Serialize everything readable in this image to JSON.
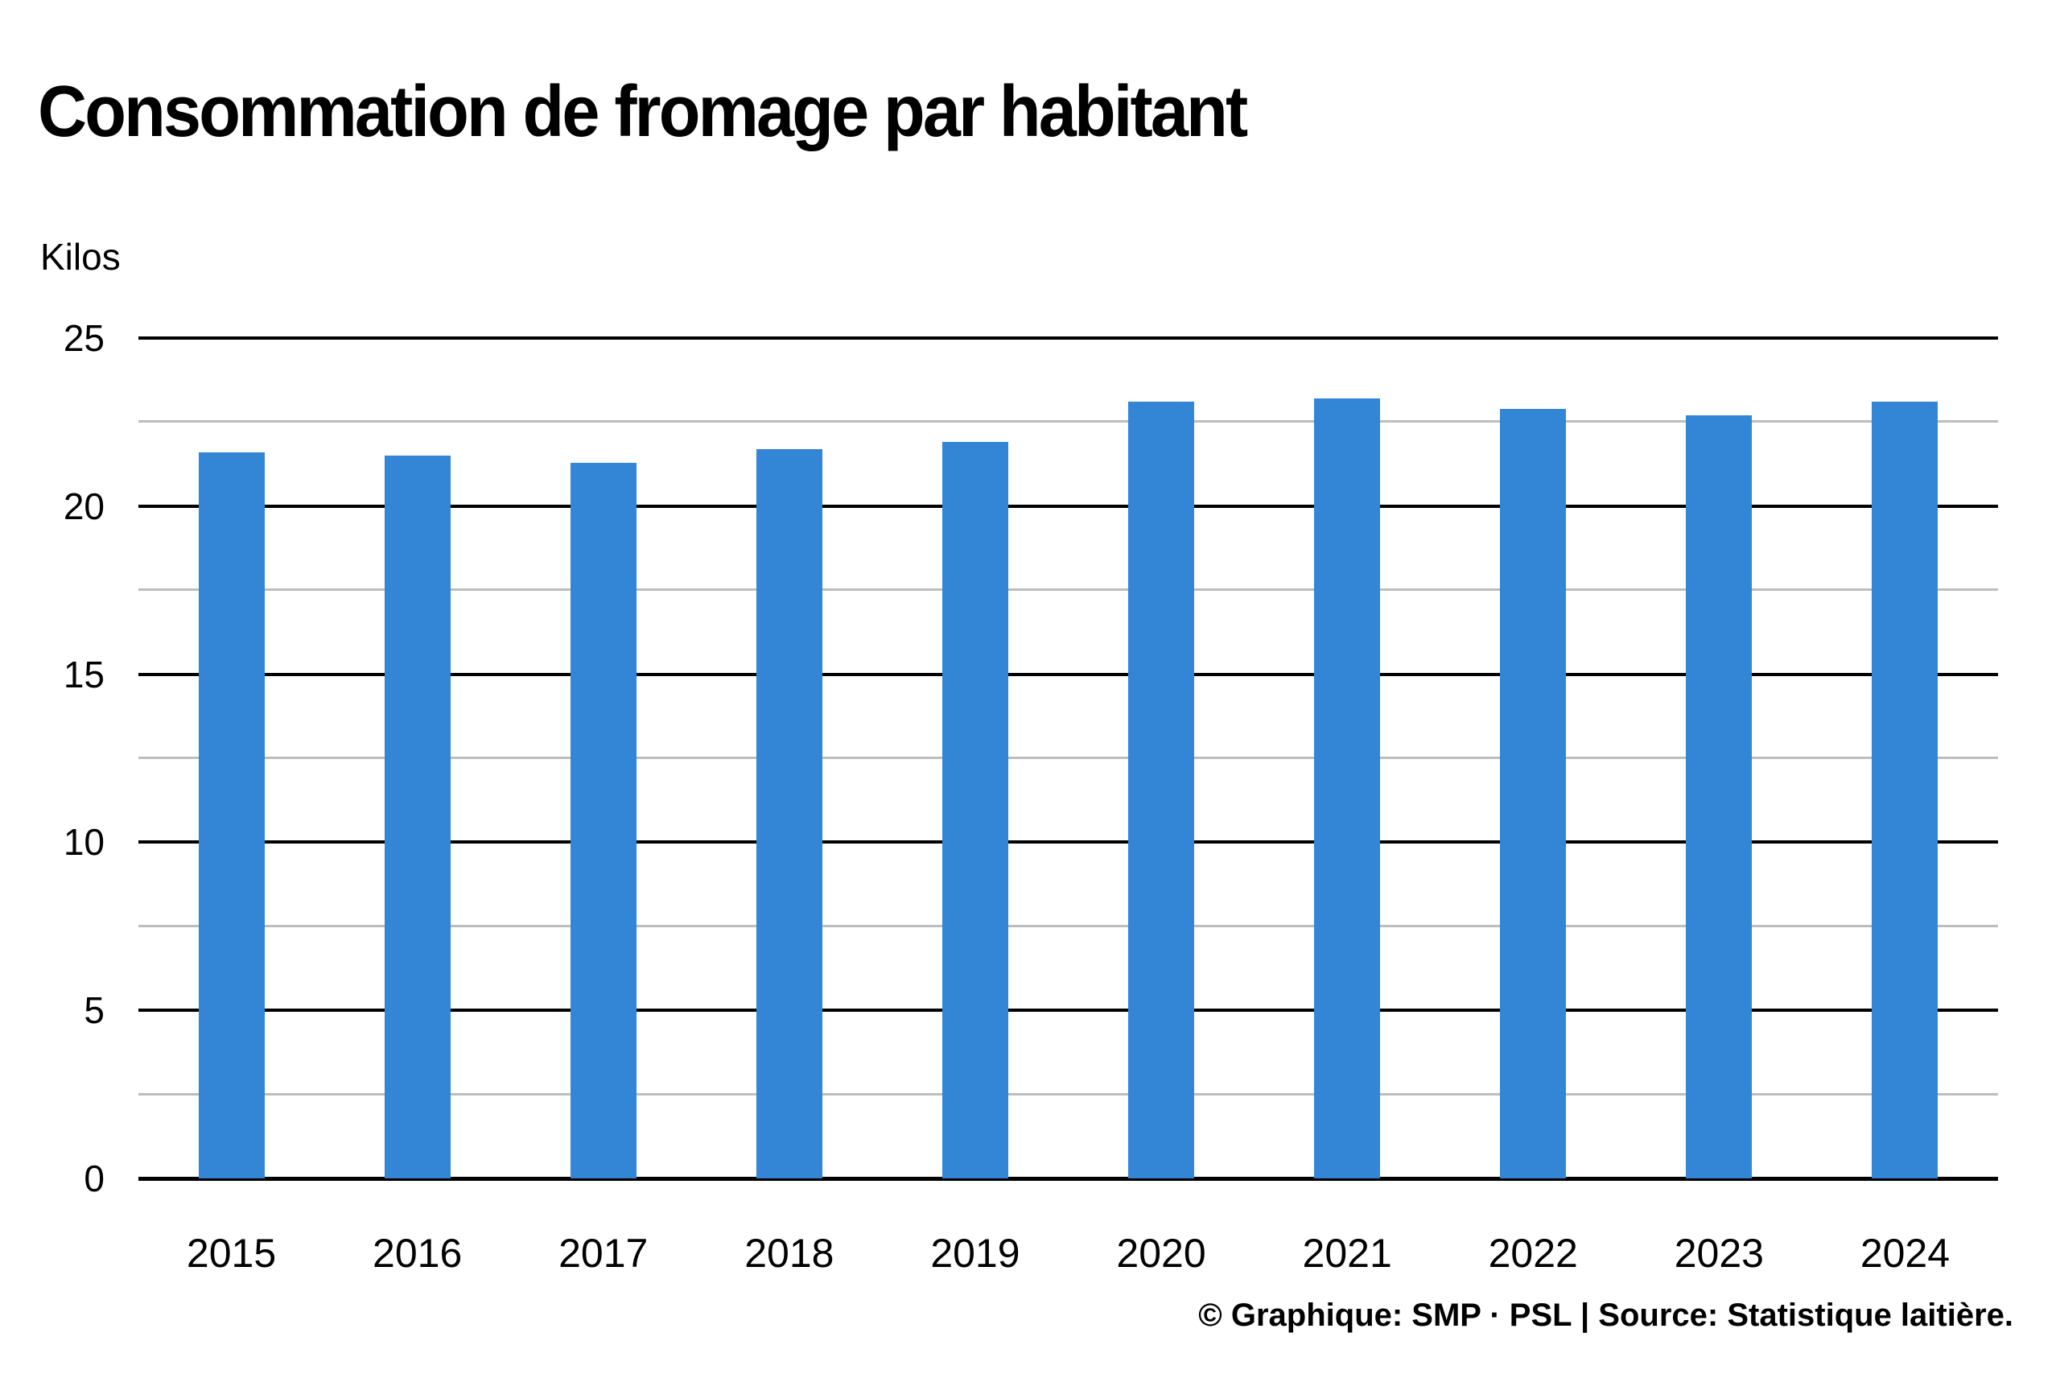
{
  "title": "Consommation de fromage par habitant",
  "footer": {
    "credit": "© Graphique: SMP · PSL | Source: Statistique laitière."
  },
  "chart_data": {
    "type": "bar",
    "title": "Consommation de fromage par habitant",
    "unit_label": "Kilos",
    "xlabel": "",
    "ylabel": "Kilos",
    "categories": [
      "2015",
      "2016",
      "2017",
      "2018",
      "2019",
      "2020",
      "2021",
      "2022",
      "2023",
      "2024"
    ],
    "values": [
      21.6,
      21.5,
      21.3,
      21.7,
      21.9,
      23.1,
      23.2,
      22.9,
      22.7,
      23.1
    ],
    "ylim": [
      0,
      25
    ],
    "y_major_step": 5,
    "y_minor_step": 2.5,
    "y_ticks": [
      25,
      20,
      15,
      10,
      5,
      0
    ],
    "grid": "horizontal",
    "legend_position": "none",
    "bar_color": "#3385d6",
    "major_grid_color": "#000000",
    "minor_grid_color": "#bdbdbd",
    "text_color": "#000000"
  }
}
